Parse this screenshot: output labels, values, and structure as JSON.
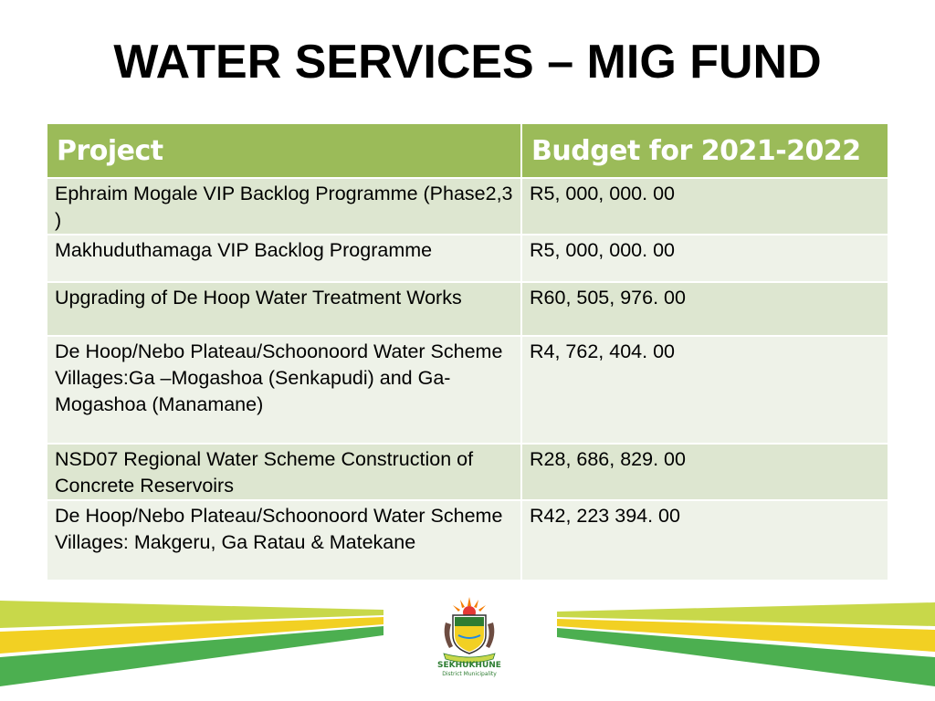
{
  "title": "WATER SERVICES – MIG FUND",
  "table": {
    "headers": [
      "Project",
      "Budget for 2021-2022"
    ],
    "rows": [
      {
        "project": "Ephraim Mogale VIP Backlog Programme (Phase2,3 )",
        "budget": "R5, 000, 000. 00"
      },
      {
        "project": "Makhuduthamaga VIP Backlog Programme",
        "budget": "R5, 000, 000. 00"
      },
      {
        "project": "Upgrading of De Hoop Water Treatment Works",
        "budget": "R60, 505, 976. 00"
      },
      {
        "project": "De Hoop/Nebo Plateau/Schoonoord Water Scheme Villages:Ga –Mogashoa (Senkapudi) and Ga- Mogashoa (Manamane)",
        "budget": "R4, 762, 404. 00"
      },
      {
        "project": "NSD07 Regional Water Scheme Construction of Concrete Reservoirs",
        "budget": "R28, 686, 829. 00"
      },
      {
        "project": "De Hoop/Nebo Plateau/Schoonoord Water Scheme Villages: Makgeru, Ga Ratau & Matekane",
        "budget": "R42, 223 394. 00"
      }
    ]
  },
  "footer": {
    "logo_name": "SEKHUKHUNE",
    "logo_sub": "District Municipality",
    "logo_icon": "municipal-crest-icon",
    "colors": {
      "green_light": "#c8d84a",
      "green_dark": "#4caf50",
      "yellow": "#f2d023"
    }
  }
}
